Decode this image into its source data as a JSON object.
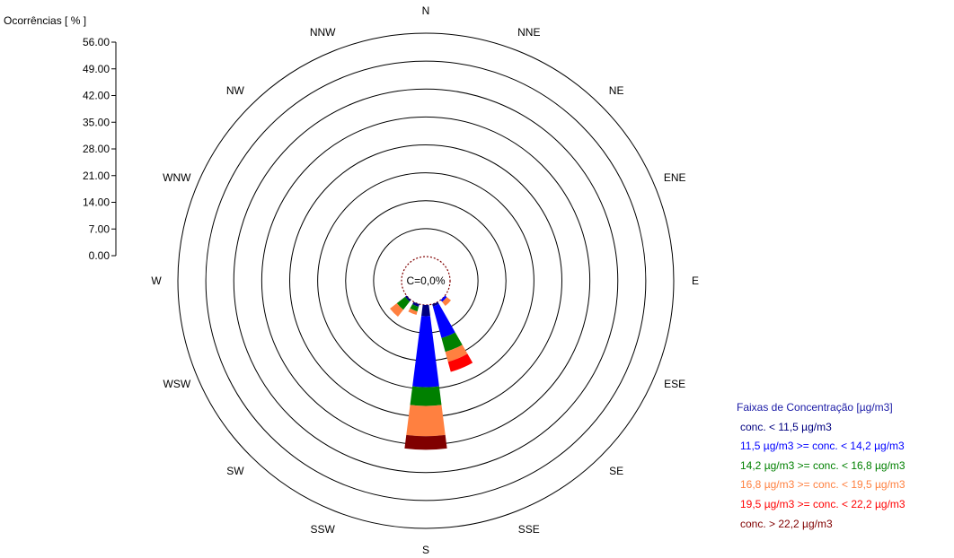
{
  "chart_data": {
    "type": "wind-rose",
    "ylabel": "Ocorrências [ % ]",
    "ylim": [
      0,
      56
    ],
    "ticks": [
      "0.00",
      "7.00",
      "14.00",
      "21.00",
      "28.00",
      "35.00",
      "42.00",
      "49.00",
      "56.00"
    ],
    "directions": [
      "N",
      "NNE",
      "NE",
      "ENE",
      "E",
      "ESE",
      "SE",
      "SSE",
      "S",
      "SSW",
      "SW",
      "WSW",
      "W",
      "WNW",
      "NW",
      "NNW"
    ],
    "calm_label": "C=0,0%",
    "legend_title": "Faixas de Concentração [µg/m3]",
    "series": [
      {
        "name": "conc. < 11,5 µg/m3",
        "color": "#000080",
        "values": [
          0,
          0,
          0,
          0,
          0,
          0,
          0,
          0.6,
          2.8,
          0.7,
          0.5,
          0,
          0,
          0,
          0,
          0
        ]
      },
      {
        "name": "11,5 µg/m3 >= conc. < 14,2 µg/m3",
        "color": "#0000ff",
        "values": [
          0,
          0,
          0,
          0,
          0,
          0,
          0.6,
          8.2,
          17.8,
          0,
          0,
          0,
          0,
          0,
          0,
          0
        ]
      },
      {
        "name": "14,2 µg/m3 >= conc. < 16,8 µg/m3",
        "color": "#008000",
        "values": [
          0,
          0,
          0,
          0,
          0,
          0,
          0,
          3.6,
          4.7,
          1.2,
          2.6,
          0,
          0,
          0,
          0,
          0
        ]
      },
      {
        "name": "16,8 µg/m3 >= conc. < 19,5 µg/m3",
        "color": "#ff8040",
        "values": [
          0,
          0,
          0,
          0,
          0,
          0,
          1.3,
          2.6,
          7.6,
          0.9,
          2.2,
          0,
          0,
          0,
          0,
          0
        ]
      },
      {
        "name": "19,5 µg/m3 >= conc. < 22,2 µg/m3",
        "color": "#ff0000",
        "values": [
          0,
          0,
          0,
          0,
          0,
          0,
          0,
          2.6,
          0,
          0,
          0,
          0,
          0,
          0,
          0,
          0
        ]
      },
      {
        "name": "conc. > 22,2 µg/m3",
        "color": "#800000",
        "values": [
          0,
          0,
          0,
          0,
          0,
          0,
          0,
          0,
          3.4,
          0,
          0,
          0,
          0,
          0,
          0,
          0
        ]
      }
    ]
  }
}
